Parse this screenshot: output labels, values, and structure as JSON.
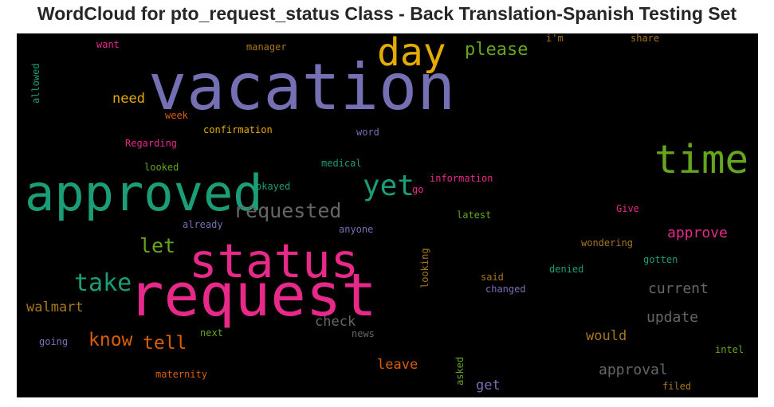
{
  "chart_data": {
    "type": "wordcloud",
    "title": "WordCloud for pto_request_status Class - Back Translation-Spanish Testing Set",
    "background": "#000000",
    "words": [
      {
        "text": "vacation",
        "weight": 100,
        "color": "#7570b3"
      },
      {
        "text": "request",
        "weight": 92,
        "color": "#e7298a"
      },
      {
        "text": "approved",
        "weight": 78,
        "color": "#1b9e77"
      },
      {
        "text": "status",
        "weight": 74,
        "color": "#e7298a"
      },
      {
        "text": "time",
        "weight": 62,
        "color": "#66a61e"
      },
      {
        "text": "day",
        "weight": 60,
        "color": "#e6ab02"
      },
      {
        "text": "yet",
        "weight": 46,
        "color": "#1b9e77"
      },
      {
        "text": "take",
        "weight": 38,
        "color": "#1b9e77"
      },
      {
        "text": "requested",
        "weight": 32,
        "color": "#666666"
      },
      {
        "text": "let",
        "weight": 32,
        "color": "#66a61e"
      },
      {
        "text": "know",
        "weight": 30,
        "color": "#d95f02"
      },
      {
        "text": "tell",
        "weight": 30,
        "color": "#d95f02"
      },
      {
        "text": "please",
        "weight": 28,
        "color": "#66a61e"
      },
      {
        "text": "approve",
        "weight": 24,
        "color": "#e7298a"
      },
      {
        "text": "current",
        "weight": 24,
        "color": "#666666"
      },
      {
        "text": "update",
        "weight": 24,
        "color": "#666666"
      },
      {
        "text": "approval",
        "weight": 24,
        "color": "#666666"
      },
      {
        "text": "walmart",
        "weight": 22,
        "color": "#a6761d"
      },
      {
        "text": "need",
        "weight": 22,
        "color": "#e6ab02"
      },
      {
        "text": "check",
        "weight": 22,
        "color": "#666666"
      },
      {
        "text": "would",
        "weight": 22,
        "color": "#a6761d"
      },
      {
        "text": "leave",
        "weight": 22,
        "color": "#d95f02"
      },
      {
        "text": "get",
        "weight": 22,
        "color": "#7570b3"
      },
      {
        "text": "confirmation",
        "weight": 16,
        "color": "#e6ab02"
      },
      {
        "text": "Regarding",
        "weight": 16,
        "color": "#e7298a"
      },
      {
        "text": "looked",
        "weight": 16,
        "color": "#66a61e"
      },
      {
        "text": "okayed",
        "weight": 16,
        "color": "#1b9e77"
      },
      {
        "text": "medical",
        "weight": 16,
        "color": "#1b9e77"
      },
      {
        "text": "word",
        "weight": 16,
        "color": "#7570b3"
      },
      {
        "text": "information",
        "weight": 16,
        "color": "#e7298a"
      },
      {
        "text": "go",
        "weight": 16,
        "color": "#e7298a"
      },
      {
        "text": "latest",
        "weight": 16,
        "color": "#66a61e"
      },
      {
        "text": "already",
        "weight": 16,
        "color": "#7570b3"
      },
      {
        "text": "anyone",
        "weight": 16,
        "color": "#7570b3"
      },
      {
        "text": "Give",
        "weight": 16,
        "color": "#e7298a"
      },
      {
        "text": "wondering",
        "weight": 16,
        "color": "#a6761d"
      },
      {
        "text": "gotten",
        "weight": 16,
        "color": "#1b9e77"
      },
      {
        "text": "denied",
        "weight": 16,
        "color": "#1b9e77"
      },
      {
        "text": "said",
        "weight": 16,
        "color": "#a6761d"
      },
      {
        "text": "changed",
        "weight": 16,
        "color": "#7570b3"
      },
      {
        "text": "looking",
        "weight": 16,
        "color": "#a6761d"
      },
      {
        "text": "next",
        "weight": 16,
        "color": "#66a61e"
      },
      {
        "text": "news",
        "weight": 16,
        "color": "#666666"
      },
      {
        "text": "going",
        "weight": 16,
        "color": "#7570b3"
      },
      {
        "text": "maternity",
        "weight": 16,
        "color": "#d95f02"
      },
      {
        "text": "asked",
        "weight": 16,
        "color": "#66a61e"
      },
      {
        "text": "intel",
        "weight": 16,
        "color": "#66a61e"
      },
      {
        "text": "filed",
        "weight": 16,
        "color": "#a6761d"
      },
      {
        "text": "want",
        "weight": 16,
        "color": "#e7298a"
      },
      {
        "text": "manager",
        "weight": 16,
        "color": "#a6761d"
      },
      {
        "text": "i'm",
        "weight": 16,
        "color": "#a6761d"
      },
      {
        "text": "share",
        "weight": 16,
        "color": "#a6761d"
      },
      {
        "text": "week",
        "weight": 16,
        "color": "#d95f02"
      },
      {
        "text": "allowed",
        "weight": 16,
        "color": "#1b9e77"
      }
    ]
  }
}
